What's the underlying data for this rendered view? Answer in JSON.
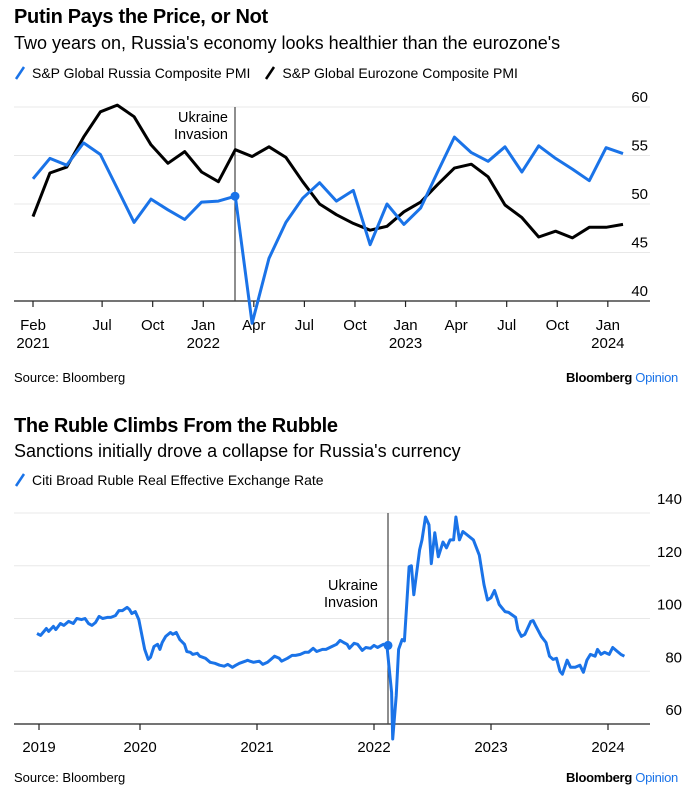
{
  "chart_data": [
    {
      "type": "line",
      "title": "Putin Pays the Price, or Not",
      "subtitle": "Two years on, Russia's economy looks healthier than the eurozone's",
      "xlabel": "",
      "ylabel": "",
      "ylim": [
        40,
        60
      ],
      "yticks": [
        40,
        45,
        50,
        55,
        60
      ],
      "grid": true,
      "y_axis_side": "right",
      "legend_position": "top-left",
      "x_ticks": [
        {
          "label": "Feb",
          "sublabel": "2021",
          "index": 0
        },
        {
          "label": "Jul",
          "sublabel": "",
          "index": 4.1
        },
        {
          "label": "Oct",
          "sublabel": "",
          "index": 7.1
        },
        {
          "label": "Jan",
          "sublabel": "2022",
          "index": 10.1
        },
        {
          "label": "Apr",
          "sublabel": "",
          "index": 13.1
        },
        {
          "label": "Jul",
          "sublabel": "",
          "index": 16.1
        },
        {
          "label": "Oct",
          "sublabel": "",
          "index": 19.1
        },
        {
          "label": "Jan",
          "sublabel": "2023",
          "index": 22.1
        },
        {
          "label": "Apr",
          "sublabel": "",
          "index": 25.1
        },
        {
          "label": "Jul",
          "sublabel": "",
          "index": 28.1
        },
        {
          "label": "Oct",
          "sublabel": "",
          "index": 31.1
        },
        {
          "label": "Jan",
          "sublabel": "2024",
          "index": 34.1
        }
      ],
      "x": [
        "2021-02",
        "2021-03",
        "2021-04",
        "2021-05",
        "2021-06",
        "2021-07",
        "2021-08",
        "2021-09",
        "2021-10",
        "2021-11",
        "2021-12",
        "2022-01",
        "2022-02",
        "2022-03",
        "2022-04",
        "2022-05",
        "2022-06",
        "2022-07",
        "2022-08",
        "2022-09",
        "2022-10",
        "2022-11",
        "2022-12",
        "2023-01",
        "2023-02",
        "2023-03",
        "2023-04",
        "2023-05",
        "2023-06",
        "2023-07",
        "2023-08",
        "2023-09",
        "2023-10",
        "2023-11",
        "2023-12",
        "2024-01"
      ],
      "series": [
        {
          "name": "S&P Global Russia Composite PMI",
          "color": "#1a73e8",
          "values": [
            52.6,
            54.7,
            54.0,
            56.3,
            55.1,
            51.6,
            48.1,
            50.5,
            49.4,
            48.4,
            50.2,
            50.3,
            50.8,
            37.7,
            44.4,
            48.1,
            50.6,
            52.2,
            50.3,
            51.4,
            45.8,
            50.0,
            47.9,
            49.6,
            53.3,
            56.9,
            55.3,
            54.4,
            55.9,
            53.3,
            56.0,
            54.7,
            53.6,
            52.4,
            55.8,
            55.2
          ]
        },
        {
          "name": "S&P Global Eurozone Composite PMI",
          "color": "#000000",
          "values": [
            48.7,
            53.2,
            53.8,
            56.9,
            59.5,
            60.2,
            59.0,
            56.1,
            54.2,
            55.4,
            53.3,
            52.3,
            55.6,
            54.9,
            55.9,
            54.8,
            52.3,
            50.0,
            48.9,
            48.0,
            47.3,
            47.7,
            49.2,
            50.2,
            52.0,
            53.7,
            54.1,
            52.8,
            49.9,
            48.6,
            46.6,
            47.2,
            46.5,
            47.6,
            47.6,
            47.9
          ]
        }
      ],
      "annotation": {
        "text_line1": "Ukraine",
        "text_line2": "Invasion",
        "index": 12,
        "marker_value": 50.8
      },
      "source": "Source: Bloomberg",
      "brand": {
        "name": "Bloomberg",
        "suffix": "Opinion"
      }
    },
    {
      "type": "line",
      "title": "The Ruble Climbs From the Rubble",
      "subtitle": "Sanctions initially drove a collapse for Russia's currency",
      "xlabel": "",
      "ylabel": "",
      "ylim": [
        60,
        140
      ],
      "yticks": [
        60,
        80,
        100,
        120,
        140
      ],
      "grid": true,
      "y_axis_side": "right",
      "legend_position": "top-left",
      "x_ticks": [
        {
          "label": "2019",
          "year": 2019.1
        },
        {
          "label": "2020",
          "year": 2020.0
        },
        {
          "label": "2021",
          "year": 2021.0
        },
        {
          "label": "2022",
          "year": 2022.0
        },
        {
          "label": "2023",
          "year": 2023.0
        },
        {
          "label": "2024",
          "year": 2024.0
        }
      ],
      "series": [
        {
          "name": "Citi Broad Ruble Real Effective Exchange Rate",
          "color": "#1a73e8",
          "points": [
            [
              2019.12,
              94.3
            ],
            [
              2019.15,
              93.6
            ],
            [
              2019.2,
              96.2
            ],
            [
              2019.22,
              95.1
            ],
            [
              2019.26,
              97.0
            ],
            [
              2019.28,
              95.8
            ],
            [
              2019.32,
              98.1
            ],
            [
              2019.35,
              97.4
            ],
            [
              2019.39,
              98.9
            ],
            [
              2019.43,
              98.1
            ],
            [
              2019.46,
              100.0
            ],
            [
              2019.5,
              99.6
            ],
            [
              2019.53,
              100.0
            ],
            [
              2019.56,
              98.1
            ],
            [
              2019.59,
              97.4
            ],
            [
              2019.62,
              98.5
            ],
            [
              2019.65,
              100.8
            ],
            [
              2019.68,
              100.0
            ],
            [
              2019.72,
              100.4
            ],
            [
              2019.75,
              100.4
            ],
            [
              2019.79,
              101.1
            ],
            [
              2019.82,
              103.0
            ],
            [
              2019.85,
              103.0
            ],
            [
              2019.89,
              104.2
            ],
            [
              2019.91,
              103.4
            ],
            [
              2019.93,
              101.9
            ],
            [
              2019.96,
              102.6
            ],
            [
              2019.99,
              99.6
            ],
            [
              2020.04,
              88.3
            ],
            [
              2020.07,
              84.5
            ],
            [
              2020.09,
              85.3
            ],
            [
              2020.12,
              89.4
            ],
            [
              2020.15,
              90.2
            ],
            [
              2020.17,
              88.3
            ],
            [
              2020.19,
              90.9
            ],
            [
              2020.22,
              93.2
            ],
            [
              2020.26,
              94.7
            ],
            [
              2020.28,
              94.0
            ],
            [
              2020.31,
              94.7
            ],
            [
              2020.34,
              92.0
            ],
            [
              2020.38,
              90.2
            ],
            [
              2020.4,
              87.5
            ],
            [
              2020.43,
              87.2
            ],
            [
              2020.45,
              86.4
            ],
            [
              2020.49,
              86.8
            ],
            [
              2020.51,
              85.7
            ],
            [
              2020.56,
              84.9
            ],
            [
              2020.6,
              83.4
            ],
            [
              2020.64,
              83.0
            ],
            [
              2020.68,
              82.3
            ],
            [
              2020.72,
              81.9
            ],
            [
              2020.75,
              82.6
            ],
            [
              2020.79,
              81.5
            ],
            [
              2020.82,
              82.3
            ],
            [
              2020.85,
              83.0
            ],
            [
              2020.9,
              83.8
            ],
            [
              2020.92,
              84.2
            ],
            [
              2020.94,
              83.8
            ],
            [
              2020.97,
              83.4
            ],
            [
              2021.02,
              83.8
            ],
            [
              2021.05,
              82.6
            ],
            [
              2021.09,
              83.4
            ],
            [
              2021.11,
              84.2
            ],
            [
              2021.15,
              85.7
            ],
            [
              2021.19,
              84.9
            ],
            [
              2021.21,
              83.8
            ],
            [
              2021.26,
              84.9
            ],
            [
              2021.3,
              86.0
            ],
            [
              2021.33,
              86.0
            ],
            [
              2021.37,
              86.4
            ],
            [
              2021.41,
              87.2
            ],
            [
              2021.44,
              87.2
            ],
            [
              2021.48,
              88.7
            ],
            [
              2021.51,
              87.5
            ],
            [
              2021.56,
              88.3
            ],
            [
              2021.59,
              88.3
            ],
            [
              2021.64,
              89.4
            ],
            [
              2021.68,
              90.2
            ],
            [
              2021.71,
              91.7
            ],
            [
              2021.74,
              90.9
            ],
            [
              2021.77,
              90.2
            ],
            [
              2021.79,
              88.7
            ],
            [
              2021.83,
              90.6
            ],
            [
              2021.86,
              90.2
            ],
            [
              2021.9,
              87.9
            ],
            [
              2021.93,
              89.0
            ],
            [
              2021.97,
              88.7
            ],
            [
              2022.0,
              89.8
            ],
            [
              2022.03,
              89.0
            ],
            [
              2022.08,
              90.2
            ],
            [
              2022.11,
              89.8
            ],
            [
              2022.15,
              72.0
            ],
            [
              2022.16,
              54.3
            ],
            [
              2022.19,
              70.6
            ],
            [
              2022.21,
              88.3
            ],
            [
              2022.24,
              92.0
            ],
            [
              2022.26,
              91.5
            ],
            [
              2022.3,
              119.6
            ],
            [
              2022.32,
              120.0
            ],
            [
              2022.34,
              109.0
            ],
            [
              2022.39,
              126.0
            ],
            [
              2022.41,
              129.8
            ],
            [
              2022.44,
              138.5
            ],
            [
              2022.47,
              135.5
            ],
            [
              2022.49,
              120.8
            ],
            [
              2022.52,
              132.5
            ],
            [
              2022.55,
              123.4
            ],
            [
              2022.59,
              129.0
            ],
            [
              2022.62,
              126.8
            ],
            [
              2022.65,
              129.8
            ],
            [
              2022.68,
              129.8
            ],
            [
              2022.7,
              138.5
            ],
            [
              2022.73,
              129.8
            ],
            [
              2022.76,
              133.0
            ],
            [
              2022.85,
              129.8
            ],
            [
              2022.9,
              124.0
            ],
            [
              2022.94,
              112.8
            ],
            [
              2022.97,
              107.0
            ],
            [
              2023.0,
              107.9
            ],
            [
              2023.03,
              110.6
            ],
            [
              2023.07,
              105.3
            ],
            [
              2023.12,
              102.6
            ],
            [
              2023.15,
              102.3
            ],
            [
              2023.21,
              100.4
            ],
            [
              2023.23,
              95.8
            ],
            [
              2023.26,
              93.2
            ],
            [
              2023.29,
              94.0
            ],
            [
              2023.34,
              98.9
            ],
            [
              2023.36,
              99.2
            ],
            [
              2023.38,
              97.4
            ],
            [
              2023.43,
              93.2
            ],
            [
              2023.47,
              90.9
            ],
            [
              2023.5,
              85.7
            ],
            [
              2023.53,
              84.5
            ],
            [
              2023.56,
              84.9
            ],
            [
              2023.59,
              80.0
            ],
            [
              2023.61,
              78.9
            ],
            [
              2023.65,
              84.2
            ],
            [
              2023.68,
              81.5
            ],
            [
              2023.72,
              81.5
            ],
            [
              2023.76,
              82.3
            ],
            [
              2023.79,
              79.6
            ],
            [
              2023.82,
              84.2
            ],
            [
              2023.85,
              86.4
            ],
            [
              2023.89,
              85.7
            ],
            [
              2023.91,
              88.3
            ],
            [
              2023.94,
              86.4
            ],
            [
              2023.97,
              87.2
            ],
            [
              2024.01,
              86.4
            ],
            [
              2024.04,
              89.0
            ],
            [
              2024.08,
              87.5
            ],
            [
              2024.11,
              86.4
            ],
            [
              2024.14,
              85.7
            ]
          ]
        }
      ],
      "annotation": {
        "text_line1": "Ukraine",
        "text_line2": "Invasion",
        "year": 2022.14,
        "marker_value": 89.8
      },
      "source": "Source: Bloomberg",
      "brand": {
        "name": "Bloomberg",
        "suffix": "Opinion"
      }
    }
  ]
}
